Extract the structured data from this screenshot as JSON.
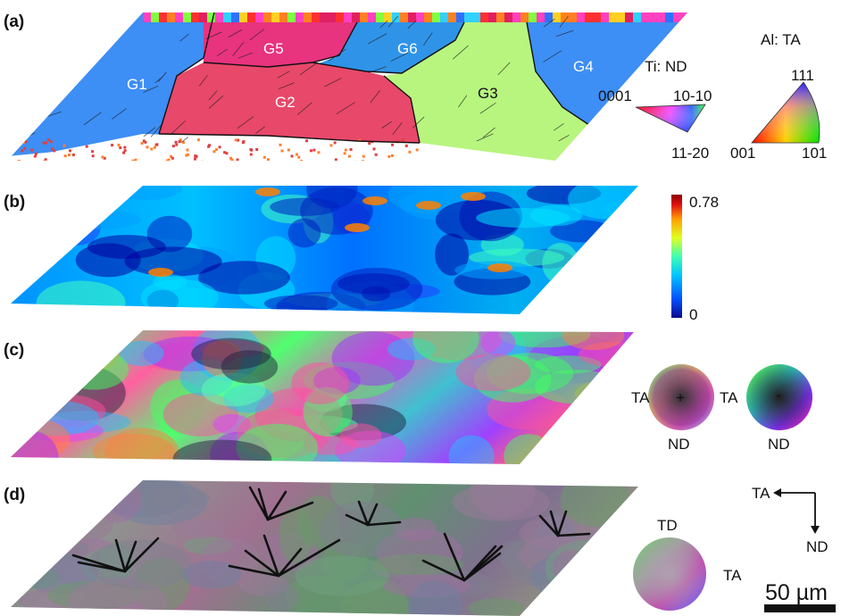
{
  "panels": [
    {
      "id": "a",
      "label": "(a)"
    },
    {
      "id": "b",
      "label": "(b)"
    },
    {
      "id": "c",
      "label": "(c)"
    },
    {
      "id": "d",
      "label": "(d)"
    }
  ],
  "grains": [
    "G1",
    "G2",
    "G3",
    "G4",
    "G5",
    "G6"
  ],
  "ti_legend": {
    "title": "Ti: ND",
    "corner_left": "0001",
    "corner_right": "10-10",
    "corner_bottom": "11-20"
  },
  "al_legend": {
    "title": "Al: TA",
    "corner_top": "111",
    "corner_left": "001",
    "corner_right": "101"
  },
  "colorbar": {
    "max": "0.78",
    "min": "0",
    "colors": [
      "#0a0a8c",
      "#0050ff",
      "#00c8ff",
      "#40ffb0",
      "#e0ff20",
      "#ffa000",
      "#e01010",
      "#8c0000"
    ]
  },
  "disk_c_plus": {
    "sign": "+",
    "left_label": "TA",
    "bottom_label": "ND"
  },
  "disk_c_minus": {
    "sign": "-",
    "left_label": "TA",
    "bottom_label": "ND"
  },
  "disk_d": {
    "top_label": "TD",
    "right_label": "TA"
  },
  "axes": {
    "horizontal": "TA",
    "vertical": "ND"
  },
  "scalebar": {
    "label": "50 µm"
  }
}
